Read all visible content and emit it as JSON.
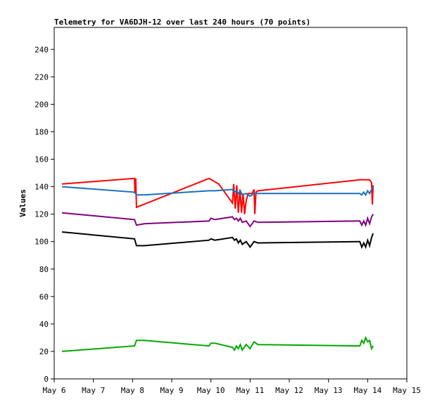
{
  "chart_data": {
    "type": "line",
    "title": "Telemetry for VA6DJH-12 over last 240 hours (70 points)",
    "xlabel": "",
    "ylabel": "Values",
    "x_ticks": [
      "May 6",
      "May 7",
      "May 8",
      "May 9",
      "May 10",
      "May 11",
      "May 12",
      "May 13",
      "May 14",
      "May 15"
    ],
    "xlim": [
      6,
      15
    ],
    "ylim": [
      0,
      256
    ],
    "y_ticks": [
      0,
      20,
      40,
      60,
      80,
      100,
      120,
      140,
      160,
      180,
      200,
      220,
      240
    ],
    "grid": false,
    "series": [
      {
        "color": "#ff0000",
        "x": [
          6.2,
          8.05,
          8.06,
          8.08,
          8.1,
          9.95,
          10.2,
          10.55,
          10.58,
          10.62,
          10.66,
          10.7,
          10.74,
          10.78,
          10.82,
          10.86,
          10.9,
          10.95,
          11.05,
          11.1,
          11.12,
          11.15,
          11.2,
          13.8,
          13.95,
          14.05,
          14.1,
          14.12,
          14.14
        ],
        "values": [
          142,
          146,
          135,
          146,
          125,
          146,
          142,
          128,
          142,
          124,
          141,
          121,
          138,
          121,
          135,
          120,
          130,
          135,
          135,
          138,
          120,
          136,
          137,
          145,
          145,
          145,
          143,
          127,
          141
        ]
      },
      {
        "color": "#1a6fc0",
        "x": [
          6.2,
          8.05,
          8.1,
          8.3,
          9.95,
          10.0,
          10.1,
          10.55,
          10.6,
          10.65,
          10.7,
          10.75,
          10.8,
          10.9,
          11.0,
          11.1,
          11.2,
          13.8,
          13.85,
          13.9,
          13.95,
          14.0,
          14.05,
          14.1,
          14.14
        ],
        "values": [
          140,
          136,
          134,
          134,
          137,
          137,
          137,
          138,
          136,
          137,
          135,
          137,
          134,
          135,
          133,
          135,
          135,
          135,
          134,
          136,
          134,
          137,
          135,
          138,
          140
        ]
      },
      {
        "color": "#800080",
        "x": [
          6.2,
          8.05,
          8.1,
          8.3,
          9.95,
          10.0,
          10.1,
          10.55,
          10.6,
          10.65,
          10.7,
          10.75,
          10.8,
          10.9,
          11.0,
          11.1,
          11.2,
          13.8,
          13.85,
          13.9,
          13.95,
          14.0,
          14.05,
          14.1,
          14.14
        ],
        "values": [
          121,
          116,
          112,
          113,
          115,
          117,
          116,
          118,
          116,
          117,
          115,
          117,
          114,
          115,
          111,
          115,
          114,
          115,
          112,
          115,
          112,
          117,
          113,
          118,
          120
        ]
      },
      {
        "color": "#000000",
        "x": [
          6.2,
          8.05,
          8.1,
          8.3,
          9.95,
          10.0,
          10.1,
          10.55,
          10.6,
          10.65,
          10.7,
          10.75,
          10.8,
          10.9,
          11.0,
          11.1,
          11.2,
          13.8,
          13.85,
          13.9,
          13.95,
          14.0,
          14.05,
          14.1,
          14.14
        ],
        "values": [
          107,
          102,
          97,
          97,
          101,
          102,
          101,
          103,
          101,
          102,
          99,
          101,
          98,
          100,
          96,
          100,
          99,
          100,
          96,
          99,
          96,
          101,
          97,
          103,
          106
        ]
      },
      {
        "color": "#00aa00",
        "x": [
          6.2,
          8.05,
          8.1,
          8.3,
          9.95,
          10.0,
          10.1,
          10.55,
          10.6,
          10.65,
          10.7,
          10.75,
          10.8,
          10.9,
          11.0,
          11.1,
          11.2,
          13.8,
          13.85,
          13.9,
          13.95,
          14.0,
          14.05,
          14.1,
          14.14
        ],
        "values": [
          20,
          24,
          28,
          28,
          24,
          26,
          26,
          23,
          21,
          24,
          22,
          25,
          21,
          25,
          22,
          27,
          25,
          24,
          28,
          26,
          30,
          27,
          28,
          22,
          24
        ]
      }
    ]
  }
}
